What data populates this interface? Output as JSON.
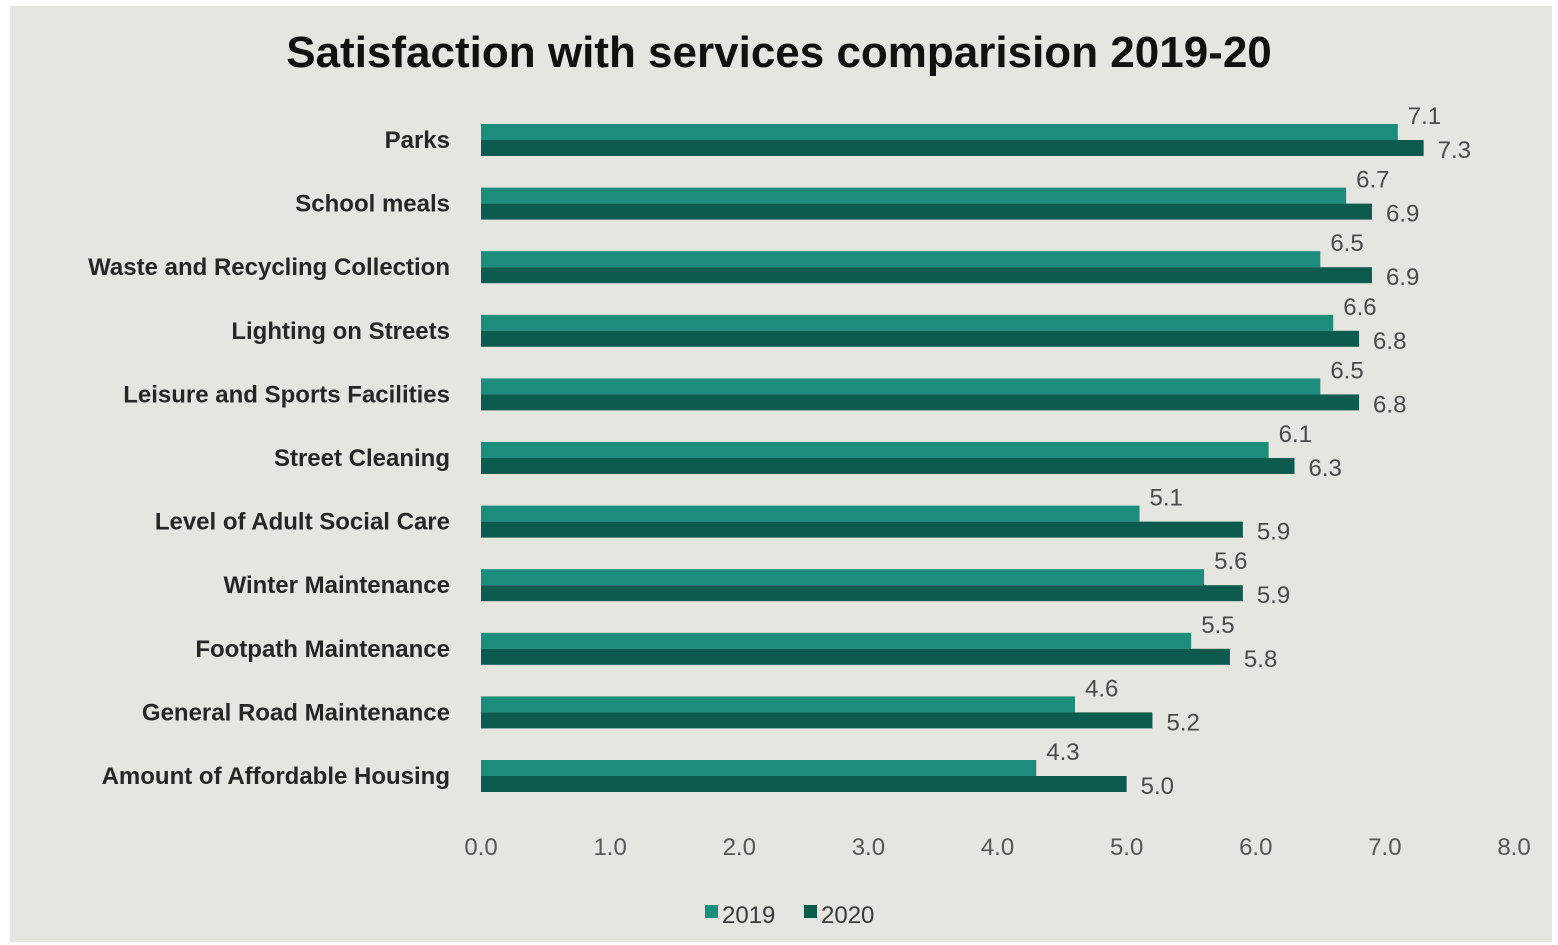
{
  "chart_data": {
    "type": "bar",
    "orientation": "horizontal",
    "title": "Satisfaction with services comparision 2019-20",
    "categories": [
      "Parks",
      "School meals",
      "Waste and Recycling  Collection",
      "Lighting on Streets",
      "Leisure and  Sports Facilities",
      "Street Cleaning",
      "Level of Adult  Social Care",
      "Winter Maintenance",
      "Footpath  Maintenance",
      "General Road  Maintenance",
      "Amount of Affordable  Housing"
    ],
    "series": [
      {
        "name": "2019",
        "color": "#1c8c7c",
        "values": [
          7.1,
          6.7,
          6.5,
          6.6,
          6.5,
          6.1,
          5.1,
          5.6,
          5.5,
          4.6,
          4.3
        ]
      },
      {
        "name": "2020",
        "color": "#0d5a4e",
        "values": [
          7.3,
          6.9,
          6.9,
          6.8,
          6.8,
          6.3,
          5.9,
          5.9,
          5.8,
          5.2,
          5.0
        ]
      }
    ],
    "xlim": [
      0,
      8
    ],
    "xticks": [
      "0.0",
      "1.0",
      "2.0",
      "3.0",
      "4.0",
      "5.0",
      "6.0",
      "7.0",
      "8.0"
    ],
    "xlabel": "",
    "ylabel": "",
    "grid": false,
    "legend_position": "bottom",
    "background": "#e6e6e1"
  }
}
